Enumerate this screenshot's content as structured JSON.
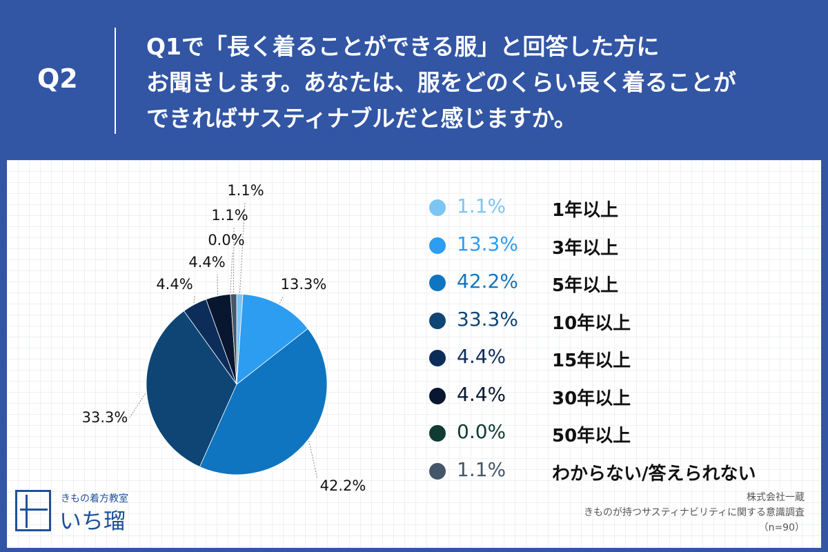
{
  "header": {
    "q_label": "Q2",
    "lines": [
      "Q1で「長く着ることができる服」と回答した方に",
      "お聞きします。あなたは、服をどのくらい長く着ることが",
      "できればサスティナブルだと感じますか。"
    ]
  },
  "chart_data": {
    "type": "pie",
    "title": "",
    "slices": [
      {
        "label": "1年以上",
        "value": 1.1,
        "display": "1.1%",
        "color": "#7cc5f5"
      },
      {
        "label": "3年以上",
        "value": 13.3,
        "display": "13.3%",
        "color": "#2d9df2"
      },
      {
        "label": "5年以上",
        "value": 42.2,
        "display": "42.2%",
        "color": "#0f75c0"
      },
      {
        "label": "10年以上",
        "value": 33.3,
        "display": "33.3%",
        "color": "#0e4575"
      },
      {
        "label": "15年以上",
        "value": 4.4,
        "display": "4.4%",
        "color": "#0c2d5a"
      },
      {
        "label": "30年以上",
        "value": 4.4,
        "display": "4.4%",
        "color": "#08172f"
      },
      {
        "label": "50年以上",
        "value": 0.0,
        "display": "0.0%",
        "color": "#0f3b33"
      },
      {
        "label": "わからない/答えられない",
        "value": 1.1,
        "display": "1.1%",
        "color": "#44566a"
      }
    ],
    "legend_position": "right"
  },
  "logo": {
    "sub": "きもの着方教室",
    "name": "いち瑠"
  },
  "source": {
    "lines": [
      "株式会社一蔵",
      "きものが持つサスティナビリティに関する意識調査",
      "（n=90）"
    ]
  }
}
